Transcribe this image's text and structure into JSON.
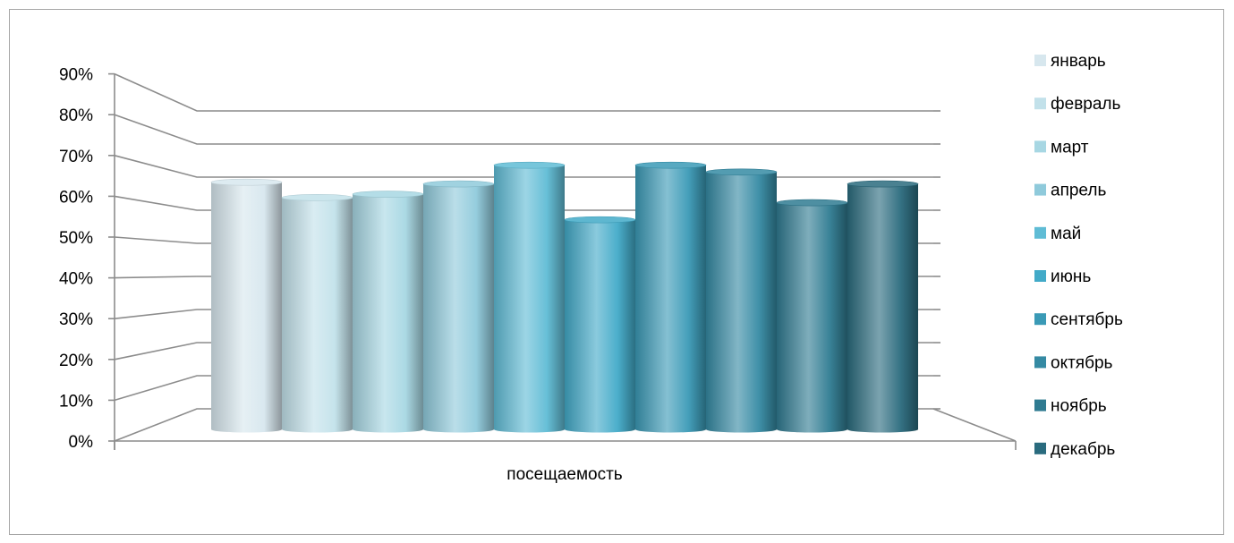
{
  "chart_data": {
    "type": "bar",
    "categories": [
      "посещаемость"
    ],
    "series": [
      {
        "name": "январь",
        "values": [
          0.725
        ],
        "color": "#d7e7ee"
      },
      {
        "name": "февраль",
        "values": [
          0.68
        ],
        "color": "#c2e1ea"
      },
      {
        "name": "март",
        "values": [
          0.69
        ],
        "color": "#a7d7e3"
      },
      {
        "name": "апрель",
        "values": [
          0.72
        ],
        "color": "#8fcadb"
      },
      {
        "name": "май",
        "values": [
          0.775
        ],
        "color": "#5fbcd5"
      },
      {
        "name": "июнь",
        "values": [
          0.615
        ],
        "color": "#42aac8"
      },
      {
        "name": "сентябрь",
        "values": [
          0.775
        ],
        "color": "#3a9ab6"
      },
      {
        "name": "октябрь",
        "values": [
          0.755
        ],
        "color": "#358aa3"
      },
      {
        "name": "ноябрь",
        "values": [
          0.665
        ],
        "color": "#2f7b91"
      },
      {
        "name": "декабрь",
        "values": [
          0.72
        ],
        "color": "#2a6b7e"
      }
    ],
    "yticks": [
      "0%",
      "10%",
      "20%",
      "30%",
      "40%",
      "50%",
      "60%",
      "70%",
      "80%",
      "90%"
    ],
    "ylim": [
      0,
      0.9
    ],
    "legend_position": "right",
    "grid": true
  }
}
